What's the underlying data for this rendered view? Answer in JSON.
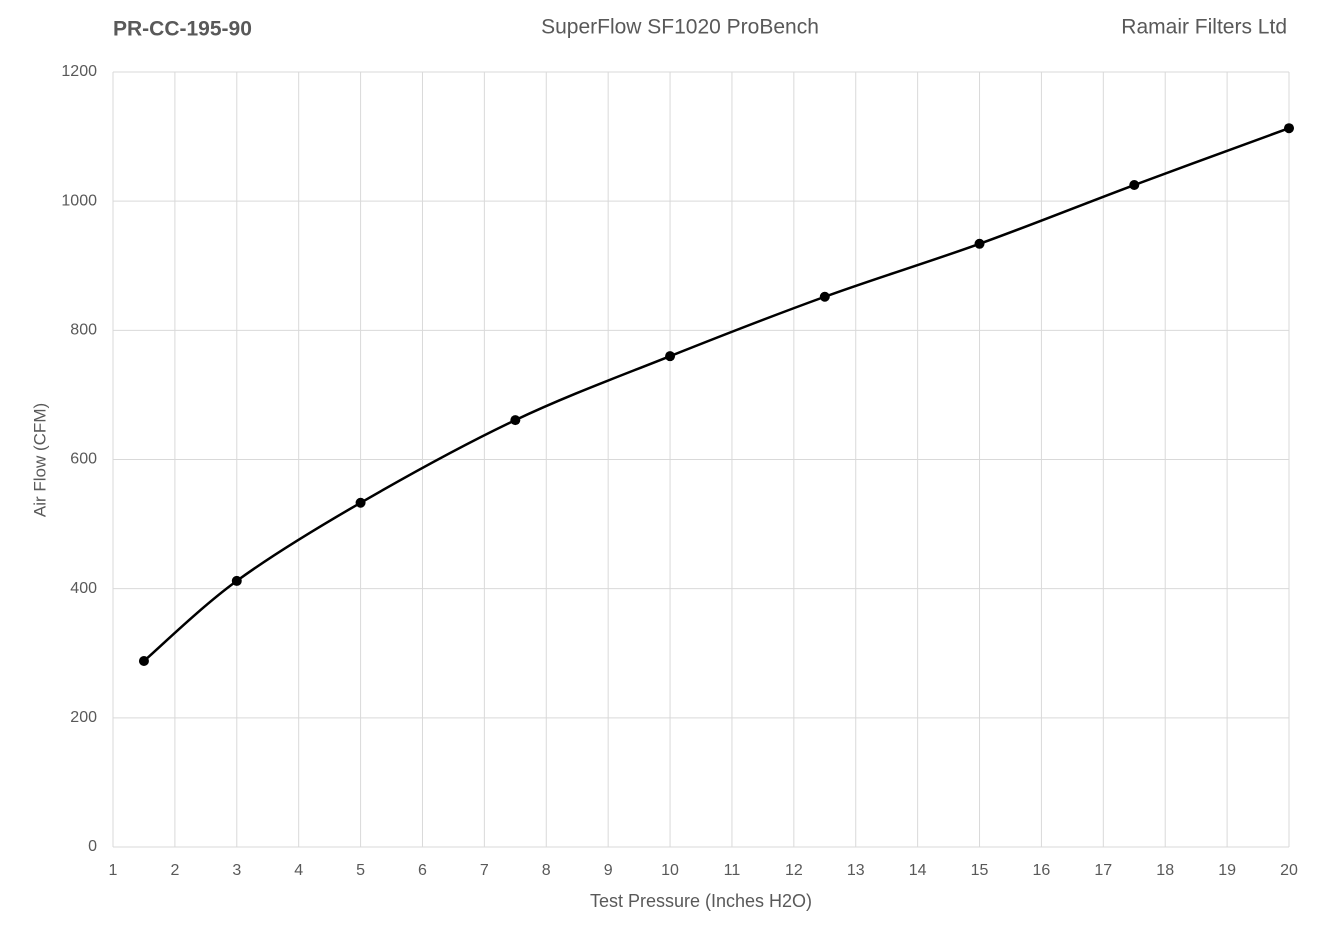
{
  "chart_data": {
    "type": "line",
    "title": "SuperFlow SF1020 ProBench",
    "annotations": [
      "PR-CC-195-90",
      "Ramair Filters Ltd"
    ],
    "x_label": "Test Pressure (Inches H2O)",
    "y_label": "Air Flow (CFM)",
    "series": [
      {
        "name": "Air Flow",
        "color": "#000000",
        "x": [
          1.5,
          3,
          5,
          7.5,
          10,
          12.5,
          15,
          17.5,
          20
        ],
        "values": [
          288,
          412,
          533,
          661,
          760,
          852,
          934,
          1025,
          1113
        ]
      }
    ],
    "xlim": [
      1,
      20
    ],
    "xticks": [
      1,
      2,
      3,
      4,
      5,
      6,
      7,
      8,
      9,
      10,
      11,
      12,
      13,
      14,
      15,
      16,
      17,
      18,
      19,
      20
    ],
    "ylim": [
      0,
      1200
    ],
    "yticks": [
      0,
      200,
      400,
      600,
      800,
      1000,
      1200
    ],
    "grid": true
  }
}
